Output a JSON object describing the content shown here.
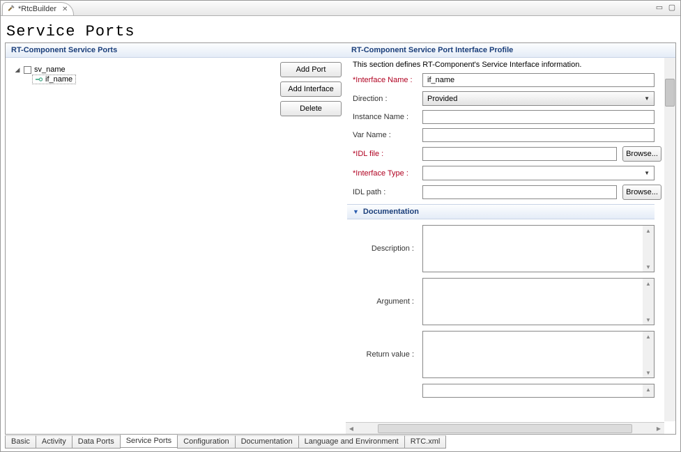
{
  "tab": {
    "title": "*RtcBuilder"
  },
  "page": {
    "title": "Service Ports"
  },
  "leftPanel": {
    "header": "RT-Component Service Ports",
    "tree": {
      "port": "sv_name",
      "interface": "if_name"
    },
    "buttons": {
      "addPort": "Add Port",
      "addInterface": "Add Interface",
      "delete": "Delete"
    }
  },
  "rightPanel": {
    "header": "RT-Component Service Port Interface Profile",
    "description": "This section defines RT-Component's Service Interface information.",
    "labels": {
      "interfaceName": "*Interface Name :",
      "direction": "Direction :",
      "instanceName": "Instance Name :",
      "varName": "Var Name :",
      "idlFile": "*IDL file :",
      "interfaceType": "*Interface Type :",
      "idlPath": "IDL path :"
    },
    "values": {
      "interfaceName": "if_name",
      "direction": "Provided",
      "instanceName": "",
      "varName": "",
      "idlFile": "",
      "interfaceType": "",
      "idlPath": ""
    },
    "browse": "Browse...",
    "doc": {
      "header": "Documentation",
      "description": "Description :",
      "argument": "Argument :",
      "returnValue": "Return value :"
    }
  },
  "bottomTabs": [
    "Basic",
    "Activity",
    "Data Ports",
    "Service Ports",
    "Configuration",
    "Documentation",
    "Language and Environment",
    "RTC.xml"
  ],
  "activeBottomTab": "Service Ports"
}
